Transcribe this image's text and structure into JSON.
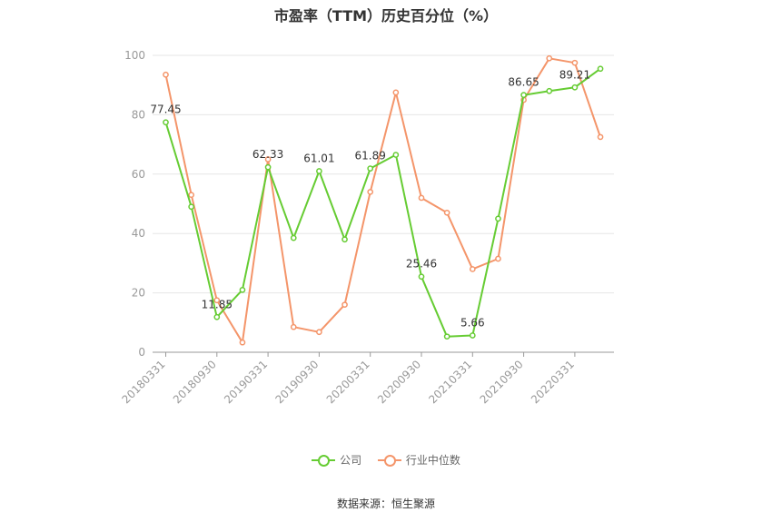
{
  "chart_data": {
    "type": "line",
    "title": "市盈率（TTM）历史百分位（%）",
    "source": "数据来源：恒生聚源",
    "ylim": [
      0,
      100
    ],
    "yticks": [
      0,
      20,
      40,
      60,
      80,
      100
    ],
    "grid": true,
    "legend_position": "bottom",
    "x": [
      "20180331",
      "20180630",
      "20180930",
      "20181231",
      "20190331",
      "20190630",
      "20190930",
      "20191231",
      "20200331",
      "20200630",
      "20200930",
      "20201231",
      "20210331",
      "20210630",
      "20210930",
      "20211231",
      "20220331",
      "20220630"
    ],
    "x_tick_labels": [
      "20180331",
      "20180930",
      "20190331",
      "20190930",
      "20200331",
      "20200930",
      "20210331",
      "20210930",
      "20220331"
    ],
    "series": [
      {
        "name": "公司",
        "color": "#66cc33",
        "values": [
          77.45,
          49,
          11.85,
          21,
          62.33,
          38.5,
          61.01,
          38,
          61.89,
          66.5,
          25.46,
          5.3,
          5.66,
          45,
          86.65,
          88,
          89.21,
          95.5
        ],
        "labels": [
          "77.45",
          "",
          "11.85",
          "",
          "62.33",
          "",
          "61.01",
          "",
          "61.89",
          "",
          "25.46",
          "",
          "5.66",
          "",
          "86.65",
          "",
          "89.21",
          ""
        ]
      },
      {
        "name": "行业中位数",
        "color": "#f4956a",
        "values": [
          93.5,
          53,
          17.5,
          3.3,
          65,
          8.5,
          6.8,
          16,
          54,
          87.5,
          52,
          47,
          28,
          31.5,
          85,
          99,
          97.5,
          72.5
        ]
      }
    ]
  }
}
